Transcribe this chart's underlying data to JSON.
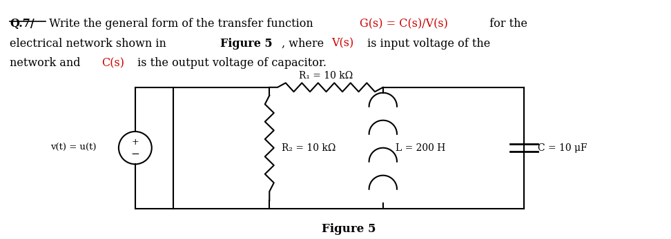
{
  "circuit": {
    "source_label": "v(t) = u(t)",
    "R1_label": "R₁ = 10 kΩ",
    "R2_label": "R₂ = 10 kΩ",
    "L_label": "L = 200 H",
    "C_label": "C = 10 μF"
  },
  "figure_label": "Figure 5",
  "bg_color": "#ffffff",
  "line_color": "#000000",
  "red_color": "#cc0000",
  "fs_text": 11.5,
  "fs_circuit": 10,
  "fs_figure": 12
}
